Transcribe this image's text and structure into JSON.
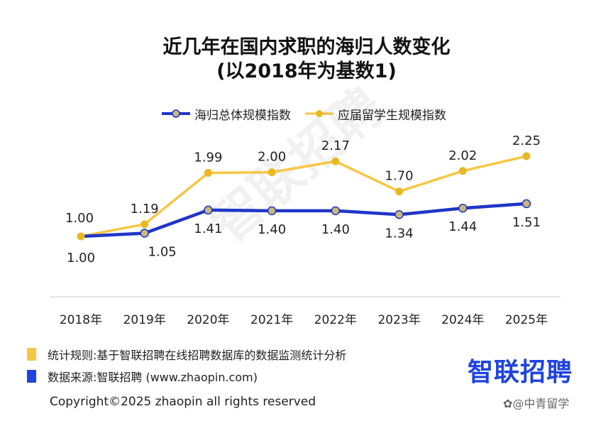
{
  "title_line1": "近几年在国内求职的海归人数变化",
  "title_line2": "(以2018年为基数1)",
  "legend": {
    "series1": "海归总体规模指数",
    "series2": "应届留学生规模指数"
  },
  "chart_data": {
    "type": "line",
    "categories": [
      "2018年",
      "2019年",
      "2020年",
      "2021年",
      "2022年",
      "2023年",
      "2024年",
      "2025年"
    ],
    "series": [
      {
        "name": "海归总体规模指数",
        "values": [
          1.0,
          1.05,
          1.41,
          1.4,
          1.4,
          1.34,
          1.44,
          1.51
        ],
        "labels": [
          "1.00",
          "1.05",
          "1.41",
          "1.40",
          "1.40",
          "1.34",
          "1.44",
          "1.51"
        ],
        "color": "#1f35c8"
      },
      {
        "name": "应届留学生规模指数",
        "values": [
          1.0,
          1.19,
          1.99,
          2.0,
          2.17,
          1.7,
          2.02,
          2.25
        ],
        "labels": [
          "1.00",
          "1.19",
          "1.99",
          "2.00",
          "2.17",
          "1.70",
          "2.02",
          "2.25"
        ],
        "color": "#f6c744"
      }
    ],
    "ylim": [
      0.4,
      2.8
    ],
    "grid": false
  },
  "notes": {
    "rule": "统计规则:基于智联招聘在线招聘数据库的数据监测统计分析",
    "source": "数据来源:智联招聘 (www.zhaopin.com)"
  },
  "logo_text": "智联招聘",
  "watermark_text": "智联招聘",
  "copyright": "Copyright©2025 zhaopin all rights reserved",
  "corner_watermark": "✿@中青留学",
  "colors": {
    "blue": "#1f35c8",
    "yellow": "#f6c744",
    "marker_yellow": "#e8b923",
    "marker_blue_fill": "#c9b87a"
  }
}
